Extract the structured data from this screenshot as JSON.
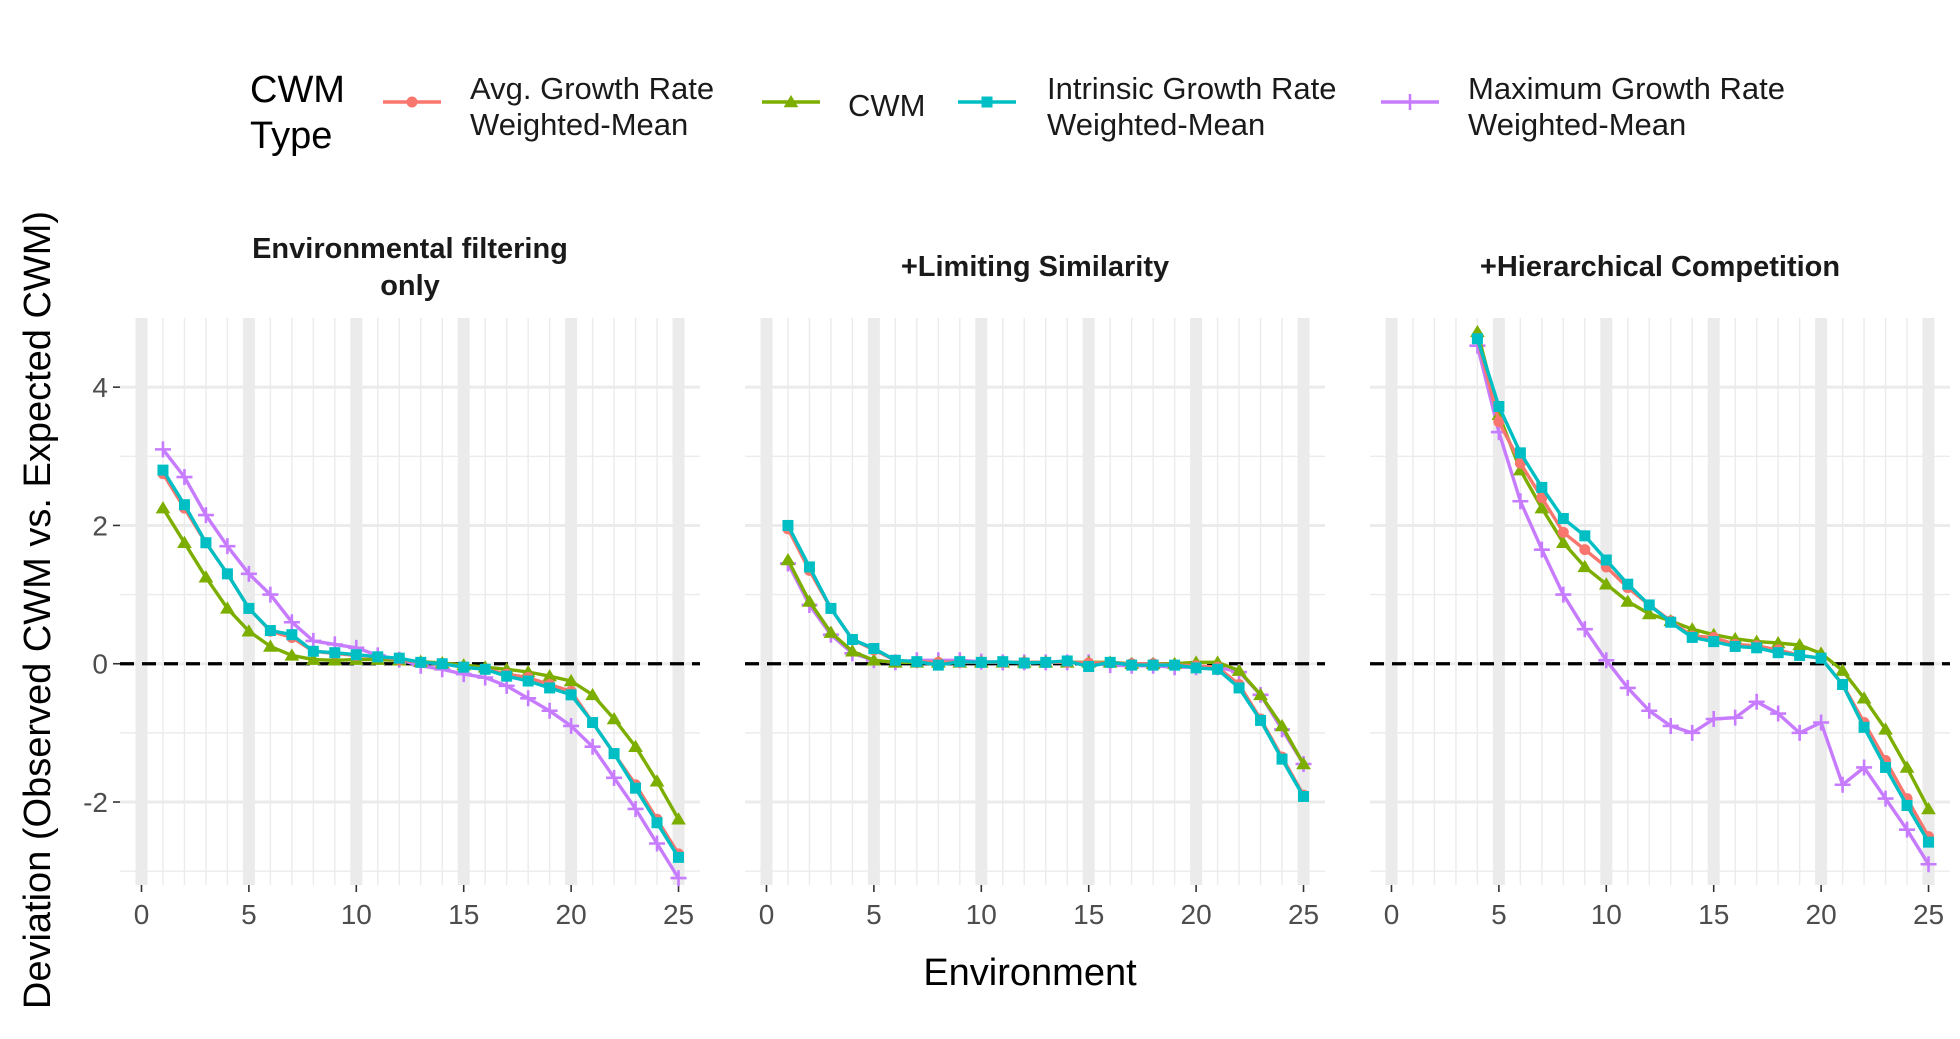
{
  "legend": {
    "title_lines": [
      "CWM",
      "Type"
    ],
    "entries": [
      {
        "key": "avg",
        "lines": [
          "Avg. Growth Rate",
          "Weighted-Mean"
        ],
        "color": "#F8766D",
        "shape": "circle"
      },
      {
        "key": "cwm",
        "lines": [
          "CWM"
        ],
        "color": "#7CAE00",
        "shape": "triangle"
      },
      {
        "key": "intr",
        "lines": [
          "Intrinsic Growth Rate",
          "Weighted-Mean"
        ],
        "color": "#00BFC4",
        "shape": "square"
      },
      {
        "key": "max",
        "lines": [
          "Maximum Growth Rate",
          "Weighted-Mean"
        ],
        "color": "#C77CFF",
        "shape": "plus"
      }
    ]
  },
  "chart_data": {
    "type": "line",
    "xlabel": "Environment",
    "ylabel": "Deviation (Observed CWM vs. Expected CWM)",
    "xlim": [
      0,
      25
    ],
    "ylim": [
      -3.2,
      5.0
    ],
    "x_ticks": [
      0,
      5,
      10,
      15,
      20,
      25
    ],
    "y_ticks": [
      -2,
      0,
      2,
      4
    ],
    "y_tick_labels": [
      "-2",
      "0",
      "2",
      "4"
    ],
    "reference_line": 0,
    "panels": [
      {
        "title_lines": [
          "Environmental filtering",
          "only"
        ],
        "x": [
          1,
          2,
          3,
          4,
          5,
          6,
          7,
          8,
          9,
          10,
          11,
          12,
          13,
          14,
          15,
          16,
          17,
          18,
          19,
          20,
          21,
          22,
          23,
          24,
          25
        ],
        "series": [
          {
            "key": "avg",
            "values": [
              2.75,
              2.25,
              1.75,
              1.3,
              0.8,
              0.47,
              0.38,
              0.18,
              0.15,
              0.12,
              0.1,
              0.06,
              0.02,
              0,
              -0.05,
              -0.08,
              -0.15,
              -0.2,
              -0.3,
              -0.4,
              -0.85,
              -1.3,
              -1.75,
              -2.25,
              -2.75
            ]
          },
          {
            "key": "cwm",
            "values": [
              2.25,
              1.75,
              1.25,
              0.8,
              0.47,
              0.25,
              0.12,
              0.06,
              0.05,
              0.06,
              0.06,
              0.05,
              0.03,
              0.01,
              -0.02,
              -0.05,
              -0.08,
              -0.12,
              -0.18,
              -0.25,
              -0.45,
              -0.8,
              -1.2,
              -1.7,
              -2.25
            ]
          },
          {
            "key": "intr",
            "values": [
              2.8,
              2.3,
              1.75,
              1.3,
              0.8,
              0.48,
              0.42,
              0.18,
              0.16,
              0.13,
              0.1,
              0.08,
              0.02,
              0,
              -0.05,
              -0.08,
              -0.18,
              -0.25,
              -0.35,
              -0.45,
              -0.85,
              -1.3,
              -1.8,
              -2.3,
              -2.8
            ]
          },
          {
            "key": "max",
            "values": [
              3.1,
              2.7,
              2.15,
              1.7,
              1.3,
              1.0,
              0.6,
              0.33,
              0.28,
              0.23,
              0.12,
              0.06,
              -0.03,
              -0.08,
              -0.15,
              -0.2,
              -0.32,
              -0.5,
              -0.68,
              -0.9,
              -1.2,
              -1.65,
              -2.1,
              -2.6,
              -3.1
            ]
          }
        ]
      },
      {
        "title_lines": [
          "+Limiting Similarity"
        ],
        "x": [
          1,
          2,
          3,
          4,
          5,
          6,
          7,
          8,
          9,
          10,
          11,
          12,
          13,
          14,
          15,
          16,
          17,
          18,
          19,
          20,
          21,
          22,
          23,
          24,
          25
        ],
        "series": [
          {
            "key": "avg",
            "values": [
              1.95,
              1.35,
              0.8,
              0.35,
              0.2,
              0.05,
              0.03,
              0.02,
              0.02,
              0.02,
              0.02,
              0.02,
              0.02,
              0.02,
              0.01,
              0.01,
              0,
              0,
              -0.02,
              -0.03,
              -0.05,
              -0.3,
              -0.8,
              -1.35,
              -1.9
            ]
          },
          {
            "key": "cwm",
            "values": [
              1.5,
              0.9,
              0.45,
              0.18,
              0.05,
              0.02,
              0.02,
              0.02,
              0.02,
              0.02,
              0.02,
              0.02,
              0.02,
              0.02,
              0.02,
              0.02,
              0,
              0,
              0,
              0.02,
              0.02,
              -0.1,
              -0.45,
              -0.9,
              -1.45
            ]
          },
          {
            "key": "intr",
            "values": [
              2.0,
              1.4,
              0.8,
              0.35,
              0.22,
              0.05,
              0.03,
              -0.02,
              0.03,
              0.02,
              0.03,
              0.01,
              0.02,
              0.04,
              -0.04,
              0.02,
              -0.02,
              -0.02,
              -0.02,
              -0.06,
              -0.08,
              -0.35,
              -0.82,
              -1.38,
              -1.92
            ]
          },
          {
            "key": "max",
            "values": [
              1.45,
              0.85,
              0.42,
              0.15,
              0.05,
              0.02,
              0.05,
              0.05,
              0.05,
              0.03,
              0.02,
              0.02,
              0.02,
              0.02,
              0.02,
              -0.02,
              -0.03,
              -0.03,
              -0.05,
              -0.05,
              -0.05,
              -0.12,
              -0.45,
              -0.95,
              -1.45
            ]
          }
        ]
      },
      {
        "title_lines": [
          "+Hierarchical Competition"
        ],
        "x": [
          4,
          5,
          6,
          7,
          8,
          9,
          10,
          11,
          12,
          13,
          14,
          15,
          16,
          17,
          18,
          19,
          20,
          21,
          22,
          23,
          24,
          25
        ],
        "series": [
          {
            "key": "avg",
            "values": [
              4.7,
              3.5,
              2.9,
              2.4,
              1.9,
              1.65,
              1.4,
              1.1,
              0.85,
              0.62,
              0.4,
              0.38,
              0.28,
              0.26,
              0.2,
              0.12,
              0.08,
              -0.3,
              -0.85,
              -1.4,
              -1.95,
              -2.5
            ]
          },
          {
            "key": "cwm",
            "values": [
              4.8,
              3.6,
              2.8,
              2.25,
              1.75,
              1.4,
              1.15,
              0.9,
              0.72,
              0.62,
              0.5,
              0.42,
              0.36,
              0.32,
              0.3,
              0.27,
              0.15,
              -0.1,
              -0.5,
              -0.95,
              -1.5,
              -2.1
            ]
          },
          {
            "key": "intr",
            "values": [
              4.7,
              3.72,
              3.05,
              2.55,
              2.1,
              1.85,
              1.5,
              1.15,
              0.85,
              0.6,
              0.38,
              0.32,
              0.25,
              0.23,
              0.16,
              0.12,
              0.08,
              -0.3,
              -0.92,
              -1.5,
              -2.05,
              -2.58
            ]
          },
          {
            "key": "max",
            "values": [
              4.6,
              3.35,
              2.35,
              1.65,
              1.0,
              0.5,
              0.05,
              -0.35,
              -0.68,
              -0.9,
              -1.0,
              -0.8,
              -0.78,
              -0.55,
              -0.72,
              -1.0,
              -0.85,
              -1.75,
              -1.5,
              -1.95,
              -2.4,
              -2.9
            ]
          }
        ]
      }
    ]
  }
}
